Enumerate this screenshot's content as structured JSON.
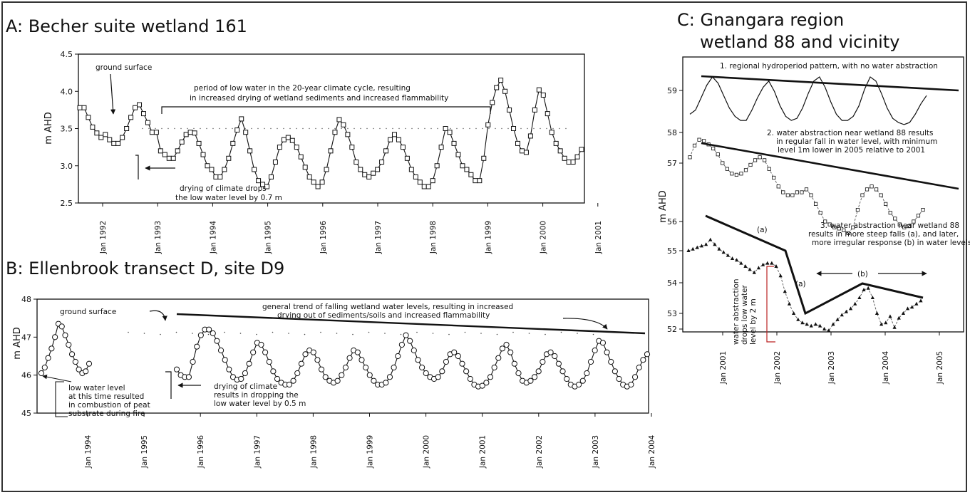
{
  "chart_data": [
    {
      "type": "line",
      "panel_title": "A: Becher suite wetland 161",
      "ylabel": "m AHD",
      "ylim": [
        2.5,
        4.5
      ],
      "yticks": [
        "2.5",
        "3.0",
        "3.5",
        "4.0",
        "4.5"
      ],
      "xticks": [
        "Jan 1992",
        "Jan 1993",
        "Jan 1994",
        "Jan 1995",
        "Jan 1996",
        "Jan 1997",
        "Jan 1998",
        "Jan 1999",
        "Jan 2000",
        "Jan 2001"
      ],
      "series": [
        {
          "values": [
            3.78,
            3.78,
            3.65,
            3.52,
            3.44,
            3.38,
            3.42,
            3.35,
            3.3,
            3.3,
            3.38,
            3.5,
            3.65,
            3.78,
            3.82,
            3.7,
            3.58,
            3.45,
            3.45,
            3.2,
            3.15,
            3.1,
            3.1,
            3.2,
            3.32,
            3.42,
            3.45,
            3.44,
            3.3,
            3.15,
            3.0,
            2.95,
            2.85,
            2.85,
            2.95,
            3.1,
            3.3,
            3.48,
            3.63,
            3.45,
            3.2,
            2.95,
            2.8,
            2.75,
            2.72,
            2.85,
            3.05,
            3.25,
            3.35,
            3.38,
            3.34,
            3.25,
            3.12,
            2.98,
            2.85,
            2.78,
            2.72,
            2.78,
            2.95,
            3.2,
            3.45,
            3.62,
            3.55,
            3.42,
            3.25,
            3.05,
            2.95,
            2.88,
            2.85,
            2.9,
            2.95,
            3.05,
            3.2,
            3.35,
            3.42,
            3.35,
            3.25,
            3.1,
            2.95,
            2.85,
            2.78,
            2.72,
            2.72,
            2.8,
            3.0,
            3.25,
            3.5,
            3.45,
            3.3,
            3.15,
            3.0,
            2.95,
            2.88,
            2.8,
            2.8,
            3.1,
            3.55,
            3.85,
            4.05,
            4.15,
            4.0,
            3.75,
            3.5,
            3.3,
            3.2,
            3.18,
            3.4,
            3.75,
            4.02,
            3.95,
            3.7,
            3.45,
            3.3,
            3.2,
            3.1,
            3.05,
            3.05,
            3.12,
            3.22
          ]
        }
      ],
      "annotations": [
        "ground surface",
        "period of low water in the 20-year climate cycle, resulting",
        "in increased drying of wetland sediments and increased flammability",
        "drying of climate drops",
        "the low water level by 0.7 m"
      ]
    },
    {
      "type": "line",
      "panel_title": "B: Ellenbrook transect D, site D9",
      "ylabel": "m AHD",
      "ylim": [
        45,
        48
      ],
      "yticks": [
        "45",
        "46",
        "47",
        "48"
      ],
      "xticks": [
        "Jan 1994",
        "Jan 1995",
        "Jan 1996",
        "Jan 1997",
        "Jan 1998",
        "Jan 1999",
        "Jan 2000",
        "Jan 2001",
        "Jan 2002",
        "Jan 2003",
        "Jan 2004"
      ],
      "series": [
        {
          "segments": [
            [
              46.05,
              46.2,
              46.45,
              46.7,
              47.0,
              47.35,
              47.28,
              47.05,
              46.8,
              46.55,
              46.35,
              46.15,
              46.05,
              46.1,
              46.3
            ],
            [
              46.15,
              46.0,
              45.95,
              45.95,
              46.35,
              46.75,
              47.05,
              47.2,
              47.2,
              47.1,
              46.9,
              46.65,
              46.4,
              46.15,
              45.95,
              45.88,
              45.9,
              46.05,
              46.3,
              46.6,
              46.85,
              46.8,
              46.6,
              46.35,
              46.1,
              45.9,
              45.8,
              45.75,
              45.75,
              45.85,
              46.05,
              46.3,
              46.55,
              46.65,
              46.6,
              46.4,
              46.15,
              45.95,
              45.85,
              45.8,
              45.85,
              46.0,
              46.2,
              46.45,
              46.65,
              46.6,
              46.4,
              46.2,
              46.0,
              45.85,
              45.75,
              45.75,
              45.8,
              45.95,
              46.2,
              46.5,
              46.8,
              47.05,
              46.9,
              46.65,
              46.4,
              46.2,
              46.05,
              45.95,
              45.9,
              45.95,
              46.1,
              46.35,
              46.55,
              46.6,
              46.5,
              46.3,
              46.1,
              45.9,
              45.75,
              45.7,
              45.72,
              45.8,
              45.95,
              46.2,
              46.45,
              46.7,
              46.8,
              46.6,
              46.3,
              46.05,
              45.85,
              45.8,
              45.85,
              45.95,
              46.1,
              46.35,
              46.55,
              46.6,
              46.5,
              46.3,
              46.1,
              45.9,
              45.75,
              45.7,
              45.75,
              45.85,
              46.05,
              46.35,
              46.65,
              46.9,
              46.85,
              46.6,
              46.35,
              46.1,
              45.9,
              45.75,
              45.7,
              45.75,
              45.95,
              46.2,
              46.4,
              46.55
            ]
          ]
        }
      ],
      "reference_points": [
        47.1,
        47.1,
        47.1,
        47.1,
        47.1,
        47.1,
        47.1,
        47.1,
        47.1,
        47.1,
        47.1,
        47.1,
        47.1,
        47.1,
        47.1,
        47.1,
        47.1,
        47.1,
        47.1,
        47.1,
        47.1,
        47.1,
        47.1,
        47.1,
        47.1,
        47.1,
        47.1,
        47.1,
        47.1,
        47.1
      ],
      "annotations": [
        "ground surface",
        "general trend of falling wetland water levels, resulting in increased",
        "drying out of sediments/soils and increased flammability",
        "low water level",
        "at this time resulted",
        "in combustion of peat",
        "substrate during fire",
        "drying of climate",
        "results in dropping the",
        "low water level by 0.5 m"
      ]
    },
    {
      "type": "line",
      "panel_title_lines": [
        "C: Gnangara region",
        "wetland 88 and vicinity"
      ],
      "ylabel": "m AHD",
      "yticks": [
        "59",
        "58",
        "57",
        "56",
        "55",
        "54",
        "53",
        "52"
      ],
      "xticks": [
        "Jan 2001",
        "Jan 2002",
        "Jan 2003",
        "Jan 2004",
        "Jan 2005"
      ],
      "series": [
        {
          "values": [
            58.4,
            58.5,
            58.8,
            59.1,
            59.3,
            59.15,
            58.85,
            58.55,
            58.35,
            58.25,
            58.25,
            58.5,
            58.8,
            59.05,
            59.2,
            58.95,
            58.6,
            58.35,
            58.25,
            58.3,
            58.55,
            58.9,
            59.2,
            59.3,
            59.05,
            58.7,
            58.4,
            58.25,
            58.25,
            58.35,
            58.6,
            59.0,
            59.3,
            59.2,
            58.9,
            58.55,
            58.3,
            58.2,
            58.15,
            58.2,
            58.4,
            58.65,
            58.85
          ]
        },
        {
          "values": [
            57.1,
            57.3,
            57.4,
            57.38,
            57.32,
            57.25,
            57.15,
            57.0,
            56.9,
            56.82,
            56.8,
            56.82,
            56.88,
            56.97,
            57.05,
            57.1,
            57.05,
            56.9,
            56.75,
            56.6,
            56.5,
            56.45,
            56.45,
            56.5,
            56.5,
            56.55,
            56.45,
            56.3,
            56.15,
            56.0,
            55.95,
            55.9,
            55.88,
            55.85,
            55.8,
            55.9,
            56.2,
            56.45,
            56.55,
            56.6,
            56.55,
            56.45,
            56.3,
            56.15,
            56.05,
            55.95,
            55.9,
            55.92,
            56.0,
            56.1,
            56.2
          ]
        },
        {
          "values": [
            55.0,
            55.05,
            55.1,
            55.15,
            55.2,
            55.35,
            55.2,
            55.05,
            54.95,
            54.85,
            54.75,
            54.7,
            54.6,
            54.5,
            54.4,
            54.3,
            54.45,
            54.55,
            54.6,
            54.6,
            54.5,
            54.2,
            53.7,
            53.3,
            53.0,
            52.8,
            52.7,
            52.65,
            52.6,
            52.65,
            52.6,
            52.5,
            52.45,
            52.65,
            52.8,
            52.95,
            53.05,
            53.15,
            53.3,
            53.5,
            53.75,
            53.8,
            53.5,
            53.0,
            52.65,
            52.7,
            52.9,
            52.55,
            52.85,
            53.0,
            53.15,
            53.2,
            53.3,
            53.4
          ]
        }
      ],
      "annotations": [
        "1. regional hydroperiod pattern, with  no water abstraction",
        "2. water abstraction near wetland 88 results",
        "in regular fall in water level, with minimum",
        "level 1m lower in 2005 relative to 2001",
        "3. water abstraction near wetland 88",
        "results in more steep falls (a), and later,",
        "more irregular response (b) in water levels",
        "(a)",
        "(a)",
        "(b)",
        "water abstraction",
        "drops low water",
        "level by 2 m"
      ]
    }
  ]
}
